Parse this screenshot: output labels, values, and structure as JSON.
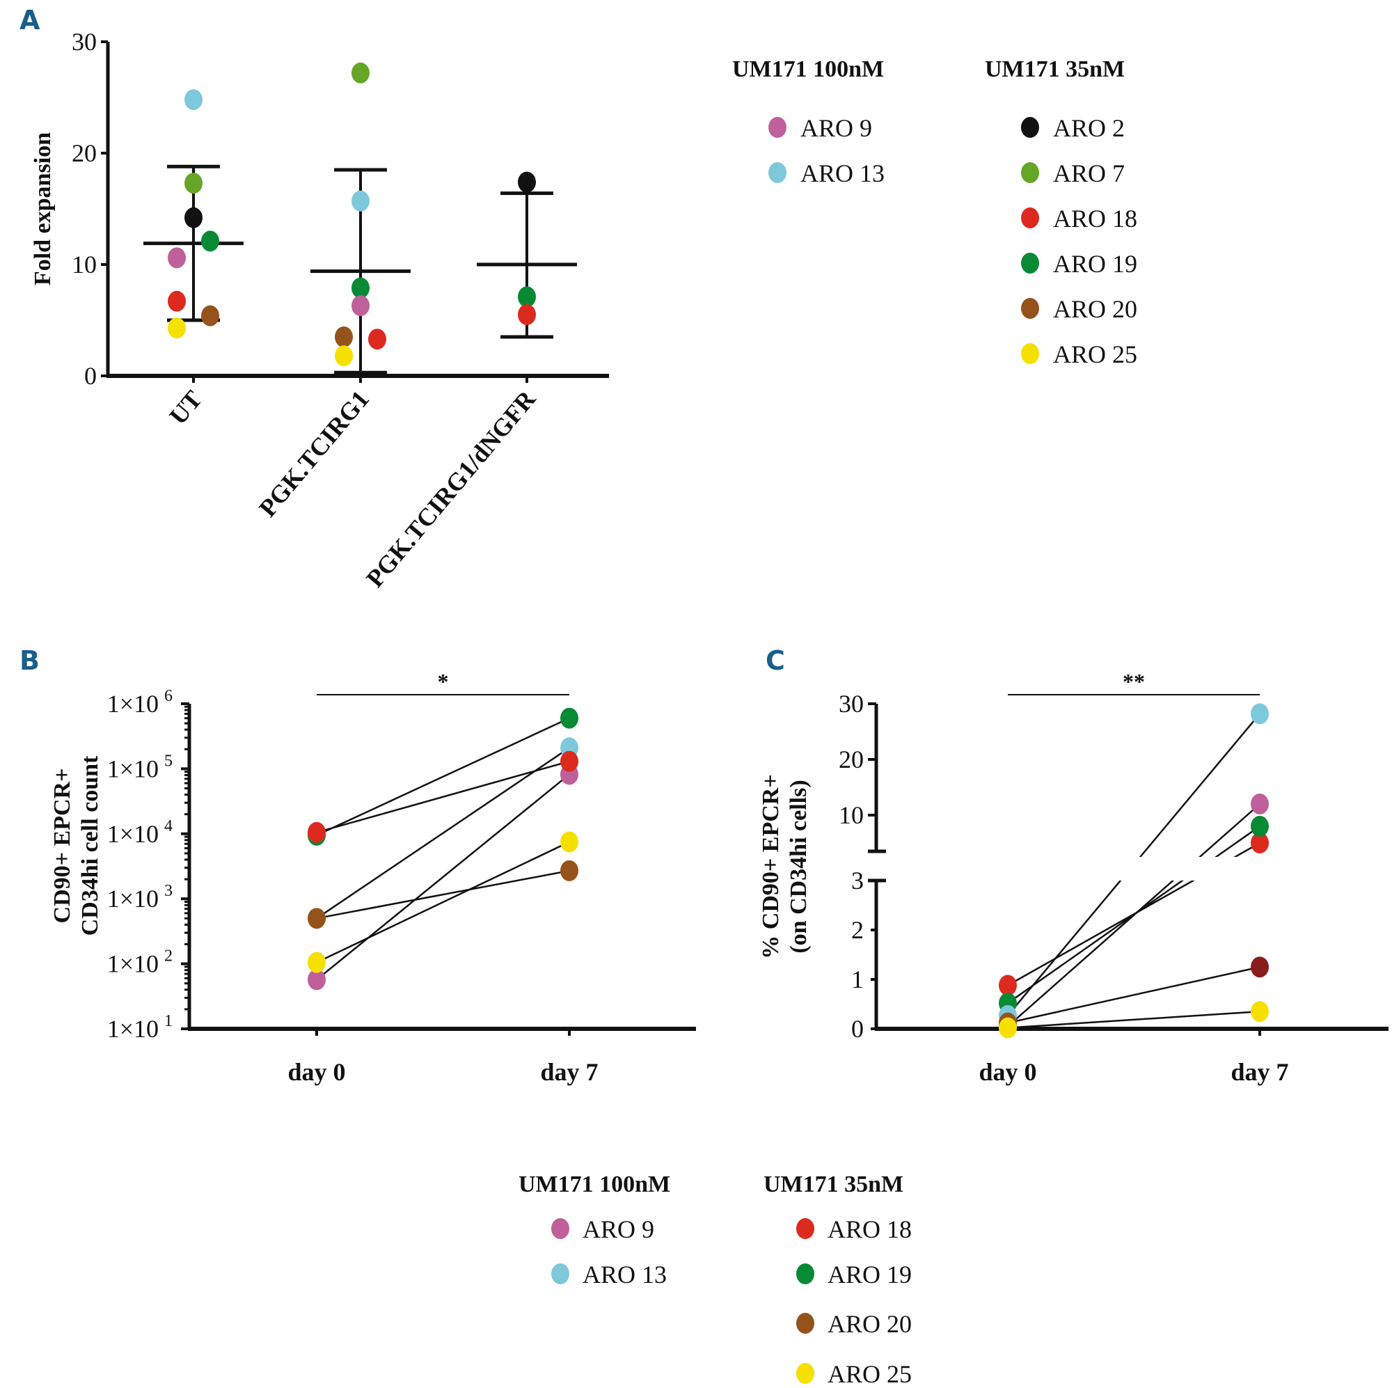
{
  "colors": {
    "ARO 2": "#111111",
    "ARO 7": "#66a626",
    "ARO 9": "#c0609a",
    "ARO 13": "#7ec8dc",
    "ARO 18": "#dc2a1e",
    "ARO 19": "#088a35",
    "ARO 20": "#95531b",
    "ARO 25": "#f6e000",
    "ARO 20 (panel C day 7)": "#8b1c1c"
  },
  "chart_data": [
    {
      "id": "A",
      "panel_label": "A",
      "type": "scatter",
      "title": "",
      "xlabel": "",
      "ylabel": "Fold expansion",
      "ylim": [
        0,
        30
      ],
      "yticks": [
        "0",
        "10",
        "20",
        "30"
      ],
      "categories": [
        "UT",
        "PGK.TCIRG1",
        "PGK.TCIRG1/dNGFR"
      ],
      "points": [
        {
          "category": "UT",
          "donor": "ARO 13",
          "value": 24.8
        },
        {
          "category": "UT",
          "donor": "ARO 7",
          "value": 17.3
        },
        {
          "category": "UT",
          "donor": "ARO 2",
          "value": 14.2
        },
        {
          "category": "UT",
          "donor": "ARO 19",
          "value": 12.1
        },
        {
          "category": "UT",
          "donor": "ARO 9",
          "value": 10.6
        },
        {
          "category": "UT",
          "donor": "ARO 18",
          "value": 6.7
        },
        {
          "category": "UT",
          "donor": "ARO 20",
          "value": 5.4
        },
        {
          "category": "UT",
          "donor": "ARO 25",
          "value": 4.3
        },
        {
          "category": "PGK.TCIRG1",
          "donor": "ARO 7",
          "value": 27.2
        },
        {
          "category": "PGK.TCIRG1",
          "donor": "ARO 13",
          "value": 15.7
        },
        {
          "category": "PGK.TCIRG1",
          "donor": "ARO 19",
          "value": 7.9
        },
        {
          "category": "PGK.TCIRG1",
          "donor": "ARO 9",
          "value": 6.3
        },
        {
          "category": "PGK.TCIRG1",
          "donor": "ARO 20",
          "value": 3.5
        },
        {
          "category": "PGK.TCIRG1",
          "donor": "ARO 18",
          "value": 3.3
        },
        {
          "category": "PGK.TCIRG1",
          "donor": "ARO 25",
          "value": 1.8
        },
        {
          "category": "PGK.TCIRG1/dNGFR",
          "donor": "ARO 2",
          "value": 17.4
        },
        {
          "category": "PGK.TCIRG1/dNGFR",
          "donor": "ARO 19",
          "value": 7.1
        },
        {
          "category": "PGK.TCIRG1/dNGFR",
          "donor": "ARO 18",
          "value": 5.5
        }
      ],
      "summary": [
        {
          "category": "UT",
          "mean": 11.9,
          "upper": 18.8,
          "lower": 5.0
        },
        {
          "category": "PGK.TCIRG1",
          "mean": 9.4,
          "upper": 18.5,
          "lower": 0.3
        },
        {
          "category": "PGK.TCIRG1/dNGFR",
          "mean": 10.0,
          "upper": 16.4,
          "lower": 3.5
        }
      ],
      "legend": {
        "placement": "right",
        "groups": [
          {
            "title": "UM171 100nM",
            "items": [
              "ARO 9",
              "ARO 13"
            ]
          },
          {
            "title": "UM171 35nM",
            "items": [
              "ARO 2",
              "ARO 7",
              "ARO 18",
              "ARO 19",
              "ARO 20",
              "ARO 25"
            ]
          }
        ]
      }
    },
    {
      "id": "B",
      "panel_label": "B",
      "type": "line",
      "title": "",
      "xlabel": "",
      "ylabel_lines": [
        "CD90+ EPCR+",
        "CD34hi cell count"
      ],
      "yscale": "log",
      "ylim": [
        10,
        1000000
      ],
      "yticks": [
        {
          "base": "1×10",
          "exp": "1"
        },
        {
          "base": "1×10",
          "exp": "2"
        },
        {
          "base": "1×10",
          "exp": "3"
        },
        {
          "base": "1×10",
          "exp": "4"
        },
        {
          "base": "1×10",
          "exp": "5"
        },
        {
          "base": "1×10",
          "exp": "6"
        }
      ],
      "x": [
        "day 0",
        "day 7"
      ],
      "significance": "*",
      "series": [
        {
          "name": "ARO 19",
          "values": [
            9500,
            600000
          ]
        },
        {
          "name": "ARO 18",
          "values": [
            10500,
            130000
          ]
        },
        {
          "name": "ARO 13",
          "values": [
            500,
            210000
          ]
        },
        {
          "name": "ARO 20",
          "values": [
            500,
            2700
          ]
        },
        {
          "name": "ARO 25",
          "values": [
            105,
            7500
          ]
        },
        {
          "name": "ARO 9",
          "values": [
            57,
            82000
          ]
        }
      ]
    },
    {
      "id": "C",
      "panel_label": "C",
      "type": "line",
      "title": "",
      "xlabel": "",
      "ylabel_lines": [
        "% CD90+ EPCR+",
        "(on CD34hi cells)"
      ],
      "yscale": "broken",
      "ylim_lower": [
        0,
        3
      ],
      "ylim_upper": [
        3.5,
        30
      ],
      "yticks_lower": [
        "0",
        "1",
        "2",
        "3"
      ],
      "yticks_upper": [
        "10",
        "20",
        "30"
      ],
      "x": [
        "day 0",
        "day 7"
      ],
      "significance": "**",
      "series": [
        {
          "name": "ARO 13",
          "values": [
            0.27,
            28.2
          ]
        },
        {
          "name": "ARO 9",
          "values": [
            0.05,
            12.0
          ]
        },
        {
          "name": "ARO 19",
          "values": [
            0.52,
            8.0
          ]
        },
        {
          "name": "ARO 18",
          "values": [
            0.88,
            5.0
          ]
        },
        {
          "name": "ARO 20",
          "values": [
            0.12,
            1.25
          ]
        },
        {
          "name": "ARO 25",
          "values": [
            0.02,
            0.35
          ]
        }
      ],
      "legend": {
        "placement": "bottom",
        "groups": [
          {
            "title": "UM171 100nM",
            "items": [
              "ARO 9",
              "ARO 13"
            ]
          },
          {
            "title": "UM171 35nM",
            "items": [
              "ARO 18",
              "ARO 19",
              "ARO 20",
              "ARO 25"
            ]
          }
        ]
      }
    }
  ]
}
